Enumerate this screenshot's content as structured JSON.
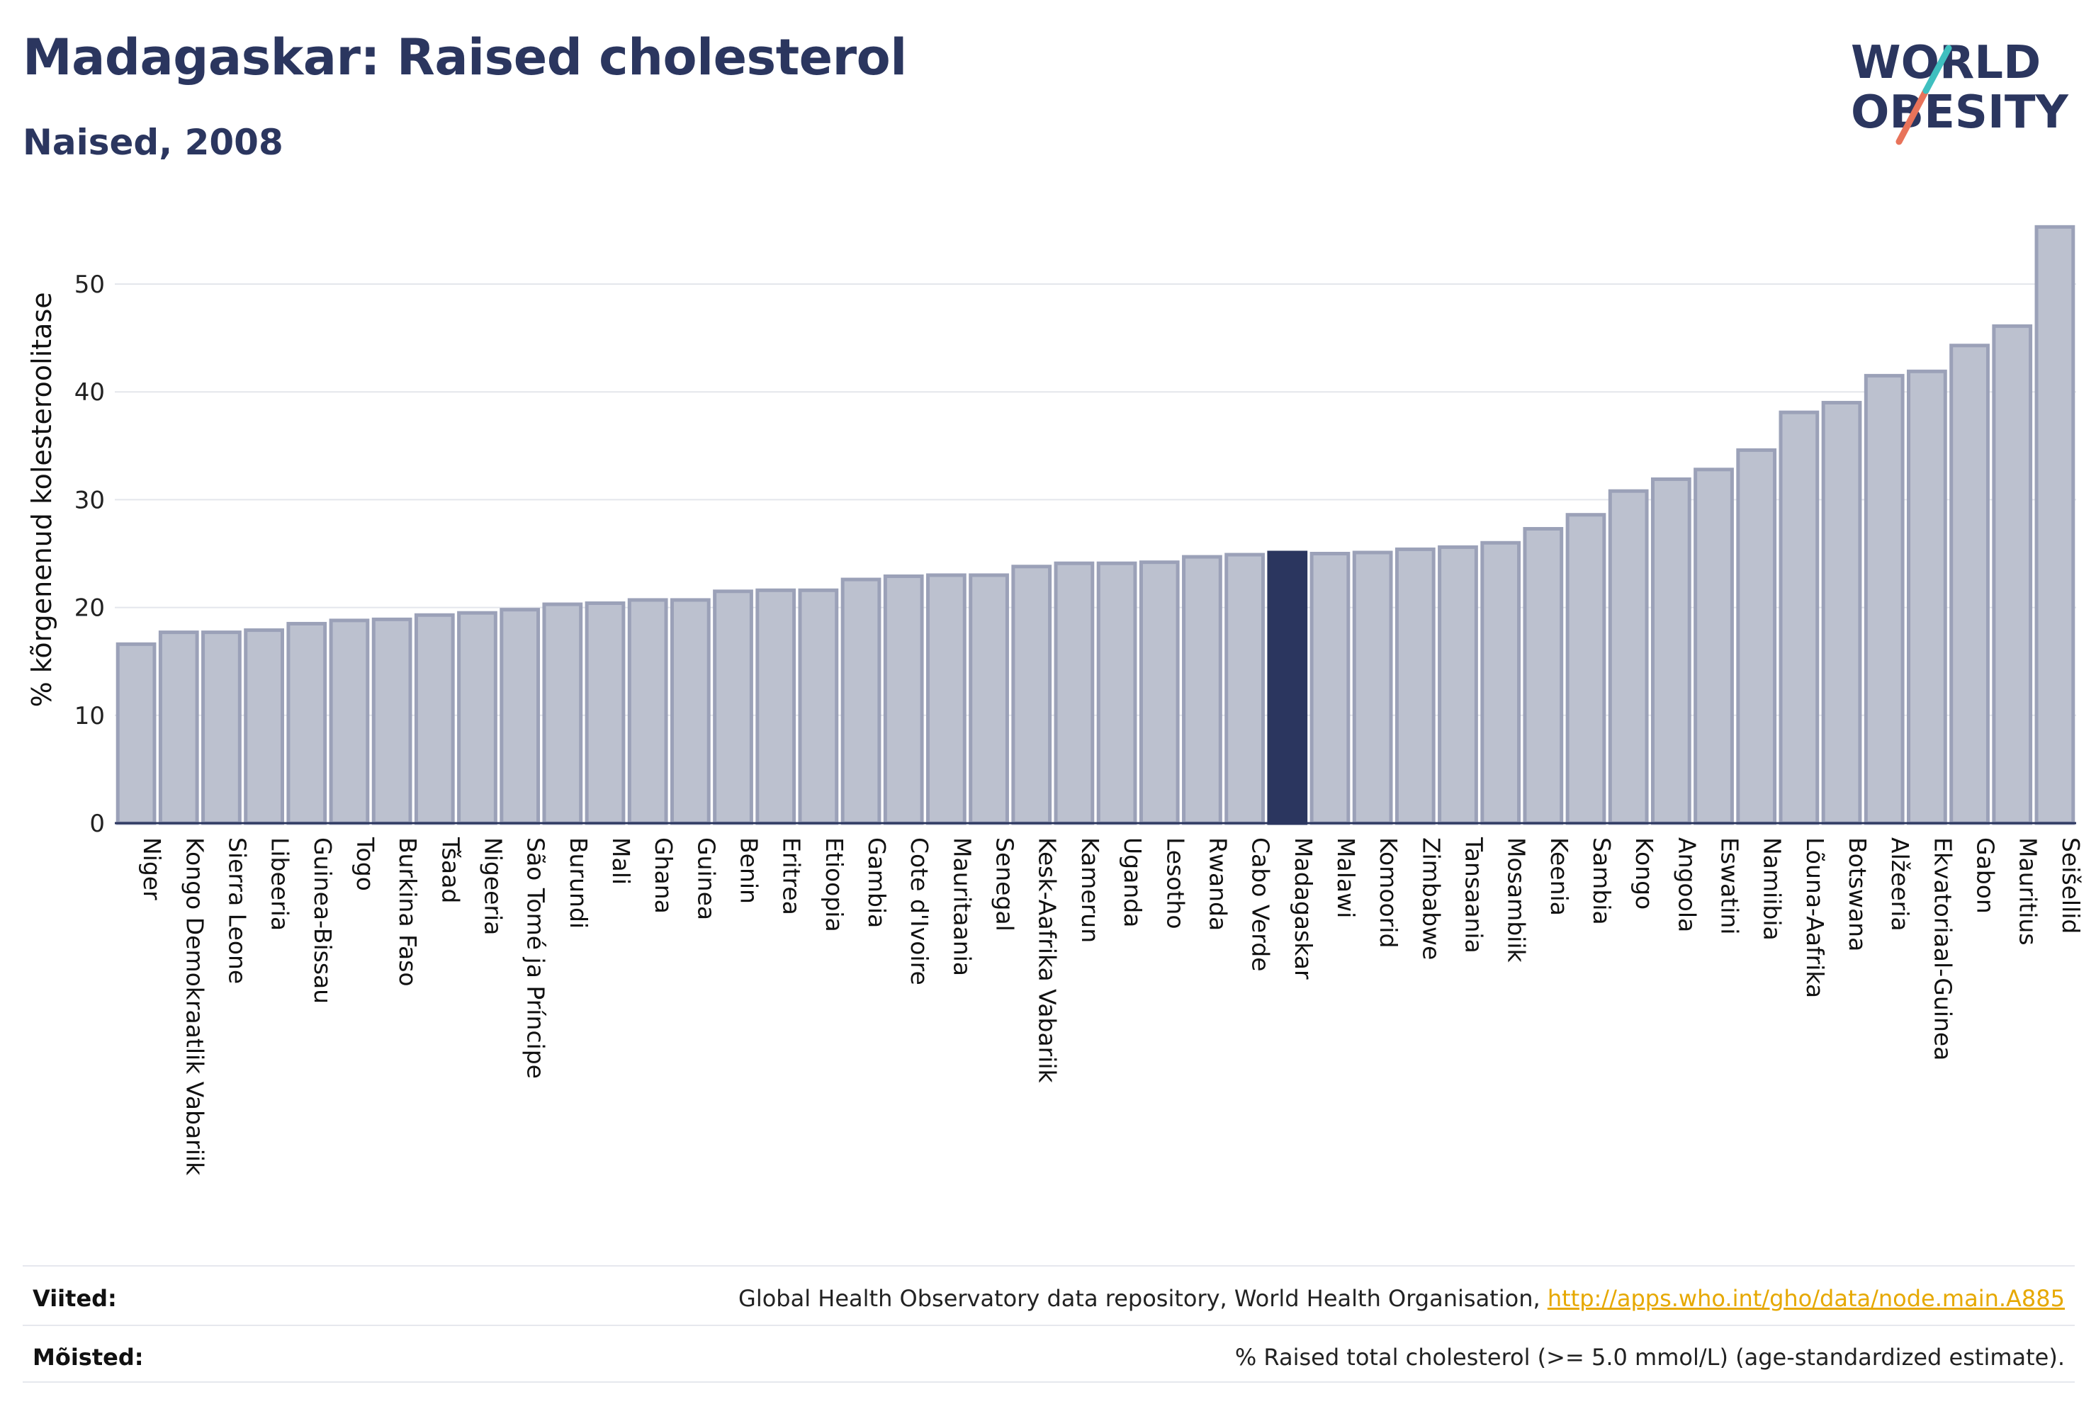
{
  "header": {
    "title": "Madagaskar: Raised cholesterol",
    "subtitle": "Naised, 2008"
  },
  "logo": {
    "line1": "WORLD",
    "line2": "OBESITY",
    "text_color": "#2b365f",
    "slash_colors": [
      "#3fbfbf",
      "#e8735a"
    ]
  },
  "chart_data": {
    "type": "bar",
    "ylabel": "% kõrgenenud kolesteroolitase",
    "ylim": [
      0,
      57
    ],
    "yticks": [
      0,
      10,
      20,
      30,
      40,
      50
    ],
    "grid": true,
    "highlight": "Madagaskar",
    "bar_color": "#bcc1cf",
    "bar_border_color": "#9ba1b8",
    "highlight_color": "#2b365f",
    "categories": [
      "Niger",
      "Kongo Demokraatlik Vabariik",
      "Sierra Leone",
      "Libeeria",
      "Guinea-Bissau",
      "Togo",
      "Burkina Faso",
      "Tšaad",
      "Nigeeria",
      "São Tomé ja Príncipe",
      "Burundi",
      "Mali",
      "Ghana",
      "Guinea",
      "Benin",
      "Eritrea",
      "Etioopia",
      "Gambia",
      "Cote d'Ivoire",
      "Mauritaania",
      "Senegal",
      "Kesk-Aafrika Vabariik",
      "Kamerun",
      "Uganda",
      "Lesotho",
      "Rwanda",
      "Cabo Verde",
      "Madagaskar",
      "Malawi",
      "Komoorid",
      "Zimbabwe",
      "Tansaania",
      "Mosambiik",
      "Keenia",
      "Sambia",
      "Kongo",
      "Angoola",
      "Eswatini",
      "Namiibia",
      "Lõuna-Aafrika",
      "Botswana",
      "Alžeeria",
      "Ekvatoriaal-Guinea",
      "Gabon",
      "Mauritius",
      "Seišellid"
    ],
    "values": [
      16.6,
      17.7,
      17.7,
      17.9,
      18.5,
      18.8,
      18.9,
      19.3,
      19.5,
      19.8,
      20.3,
      20.4,
      20.7,
      20.7,
      21.5,
      21.6,
      21.6,
      22.6,
      22.9,
      23.0,
      23.0,
      23.8,
      24.1,
      24.1,
      24.2,
      24.7,
      24.9,
      25.1,
      25.0,
      25.1,
      25.4,
      25.6,
      26.0,
      27.3,
      28.6,
      30.8,
      31.9,
      32.8,
      34.6,
      38.1,
      39.0,
      41.5,
      41.9,
      44.3,
      46.1,
      55.3
    ]
  },
  "footer": {
    "sources_label": "Viited:",
    "sources_text": "Global Health Observatory data repository, World Health Organisation, ",
    "sources_link": "http://apps.who.int/gho/data/node.main.A885",
    "definitions_label": "Mõisted:",
    "definitions_text": "% Raised total cholesterol (>= 5.0 mmol/L) (age-standardized estimate)."
  }
}
